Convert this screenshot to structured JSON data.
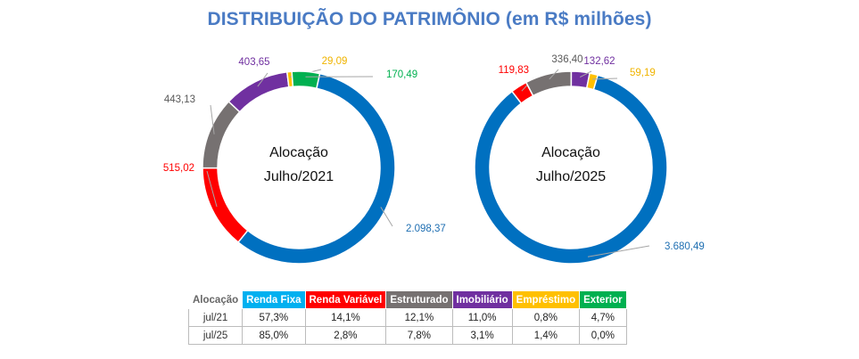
{
  "title": "DISTRIBUIÇÃO DO PATRIMÔNIO (em R$ milhões)",
  "chart_data": [
    {
      "type": "pie",
      "variant": "donut",
      "center_text": [
        "Alocação",
        "Julho/2021"
      ],
      "slices": [
        {
          "category": "Renda Fixa",
          "value": 2098.37,
          "label": "2.098,37",
          "color": "#0070c0"
        },
        {
          "category": "Renda Variável",
          "value": 515.02,
          "label": "515,02",
          "color": "#ff0000"
        },
        {
          "category": "Estruturado",
          "value": 443.13,
          "label": "443,13",
          "color": "#767171"
        },
        {
          "category": "Imobiliário",
          "value": 403.65,
          "label": "403,65",
          "color": "#7030a0"
        },
        {
          "category": "Empréstimo",
          "value": 29.09,
          "label": "29,09",
          "color": "#ffc000"
        },
        {
          "category": "Exterior",
          "value": 170.49,
          "label": "170,49",
          "color": "#00b050"
        }
      ]
    },
    {
      "type": "pie",
      "variant": "donut",
      "center_text": [
        "Alocação",
        "Julho/2025"
      ],
      "slices": [
        {
          "category": "Renda Fixa",
          "value": 3680.49,
          "label": "3.680,49",
          "color": "#0070c0"
        },
        {
          "category": "Renda Variável",
          "value": 119.83,
          "label": "119,83",
          "color": "#ff0000"
        },
        {
          "category": "Estruturado",
          "value": 336.4,
          "label": "336,40",
          "color": "#767171"
        },
        {
          "category": "Imobiliário",
          "value": 132.62,
          "label": "132,62",
          "color": "#7030a0"
        },
        {
          "category": "Empréstimo",
          "value": 59.19,
          "label": "59,19",
          "color": "#ffc000"
        },
        {
          "category": "Exterior",
          "value": 0,
          "label": "",
          "color": "#00b050"
        }
      ]
    }
  ],
  "table": {
    "corner": "Alocação",
    "headers": [
      {
        "label": "Renda Fixa",
        "color": "#00b0f0"
      },
      {
        "label": "Renda Variável",
        "color": "#ff0000"
      },
      {
        "label": "Estruturado",
        "color": "#767171"
      },
      {
        "label": "Imobiliário",
        "color": "#7030a0"
      },
      {
        "label": "Empréstimo",
        "color": "#ffc000"
      },
      {
        "label": "Exterior",
        "color": "#00b050"
      }
    ],
    "rows": [
      {
        "label": "jul/21",
        "values": [
          "57,3%",
          "14,1%",
          "12,1%",
          "11,0%",
          "0,8%",
          "4,7%"
        ]
      },
      {
        "label": "jul/25",
        "values": [
          "85,0%",
          "2,8%",
          "7,8%",
          "3,1%",
          "1,4%",
          "0,0%"
        ]
      }
    ]
  }
}
